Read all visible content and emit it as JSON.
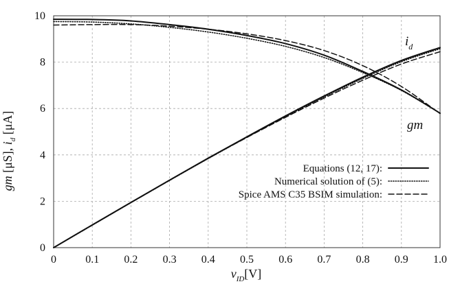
{
  "chart_data": {
    "type": "line",
    "title": "",
    "xlabel": {
      "main": "v",
      "sub": "ID",
      "unit": "[V]"
    },
    "ylabel": {
      "part1_main": "gm",
      "part1_unit": " [μS], ",
      "part2_main": "i",
      "part2_sub": "d",
      "part2_unit": " [μA]"
    },
    "xlim": [
      0,
      1.0
    ],
    "ylim": [
      0,
      10
    ],
    "grid": true,
    "legend_position": "bottom-right",
    "x_ticks": [
      0,
      0.1,
      0.2,
      0.3,
      0.4,
      0.5,
      0.6,
      0.7,
      0.8,
      0.9,
      1.0
    ],
    "x_tick_labels": [
      "0",
      "0.1",
      "0.2",
      "0.3",
      "0.4",
      "0.5",
      "0.6",
      "0.7",
      "0.8",
      "0.9",
      "1.0"
    ],
    "y_ticks": [
      0,
      2,
      4,
      6,
      8,
      10
    ],
    "y_tick_labels": [
      "0",
      "2",
      "4",
      "6",
      "8",
      "10"
    ],
    "curve_labels": {
      "id_main": "i",
      "id_sub": "d",
      "gm": "gm"
    },
    "series": [
      {
        "name": "Equations (12, 17):",
        "style": "solid",
        "curves": [
          {
            "x": [
              0,
              0.1,
              0.2,
              0.3,
              0.4,
              0.5,
              0.6,
              0.7,
              0.8,
              0.9,
              1.0
            ],
            "y": [
              9.85,
              9.84,
              9.78,
              9.62,
              9.42,
              9.15,
              8.8,
              8.3,
              7.6,
              6.8,
              5.8
            ]
          },
          {
            "x": [
              0,
              0.1,
              0.2,
              0.3,
              0.4,
              0.5,
              0.6,
              0.7,
              0.8,
              0.9,
              1.0
            ],
            "y": [
              0,
              0.98,
              1.95,
              2.91,
              3.86,
              4.78,
              5.68,
              6.54,
              7.35,
              8.07,
              8.63
            ]
          }
        ]
      },
      {
        "name": "Numerical solution of (5):",
        "style": "dotted",
        "curves": [
          {
            "x": [
              0,
              0.1,
              0.2,
              0.3,
              0.4,
              0.5,
              0.6,
              0.7,
              0.8,
              0.9,
              1.0
            ],
            "y": [
              9.75,
              9.73,
              9.65,
              9.5,
              9.3,
              9.03,
              8.68,
              8.2,
              7.55,
              6.78,
              5.8
            ]
          },
          {
            "x": [
              0,
              0.1,
              0.2,
              0.3,
              0.4,
              0.5,
              0.6,
              0.7,
              0.8,
              0.9,
              1.0
            ],
            "y": [
              0,
              0.97,
              1.94,
              2.9,
              3.84,
              4.76,
              5.65,
              6.5,
              7.3,
              8.02,
              8.58
            ]
          }
        ]
      },
      {
        "name": "Spice AMS C35 BSIM simulation:",
        "style": "dashed",
        "curves": [
          {
            "x": [
              0,
              0.1,
              0.2,
              0.3,
              0.4,
              0.5,
              0.6,
              0.7,
              0.8,
              0.9,
              1.0
            ],
            "y": [
              9.6,
              9.62,
              9.62,
              9.55,
              9.42,
              9.22,
              8.93,
              8.5,
              7.85,
              6.95,
              5.78
            ]
          },
          {
            "x": [
              0,
              0.1,
              0.2,
              0.3,
              0.4,
              0.5,
              0.6,
              0.7,
              0.8,
              0.9,
              1.0
            ],
            "y": [
              0,
              0.97,
              1.94,
              2.9,
              3.85,
              4.75,
              5.62,
              6.45,
              7.22,
              7.92,
              8.45
            ]
          }
        ]
      }
    ]
  }
}
